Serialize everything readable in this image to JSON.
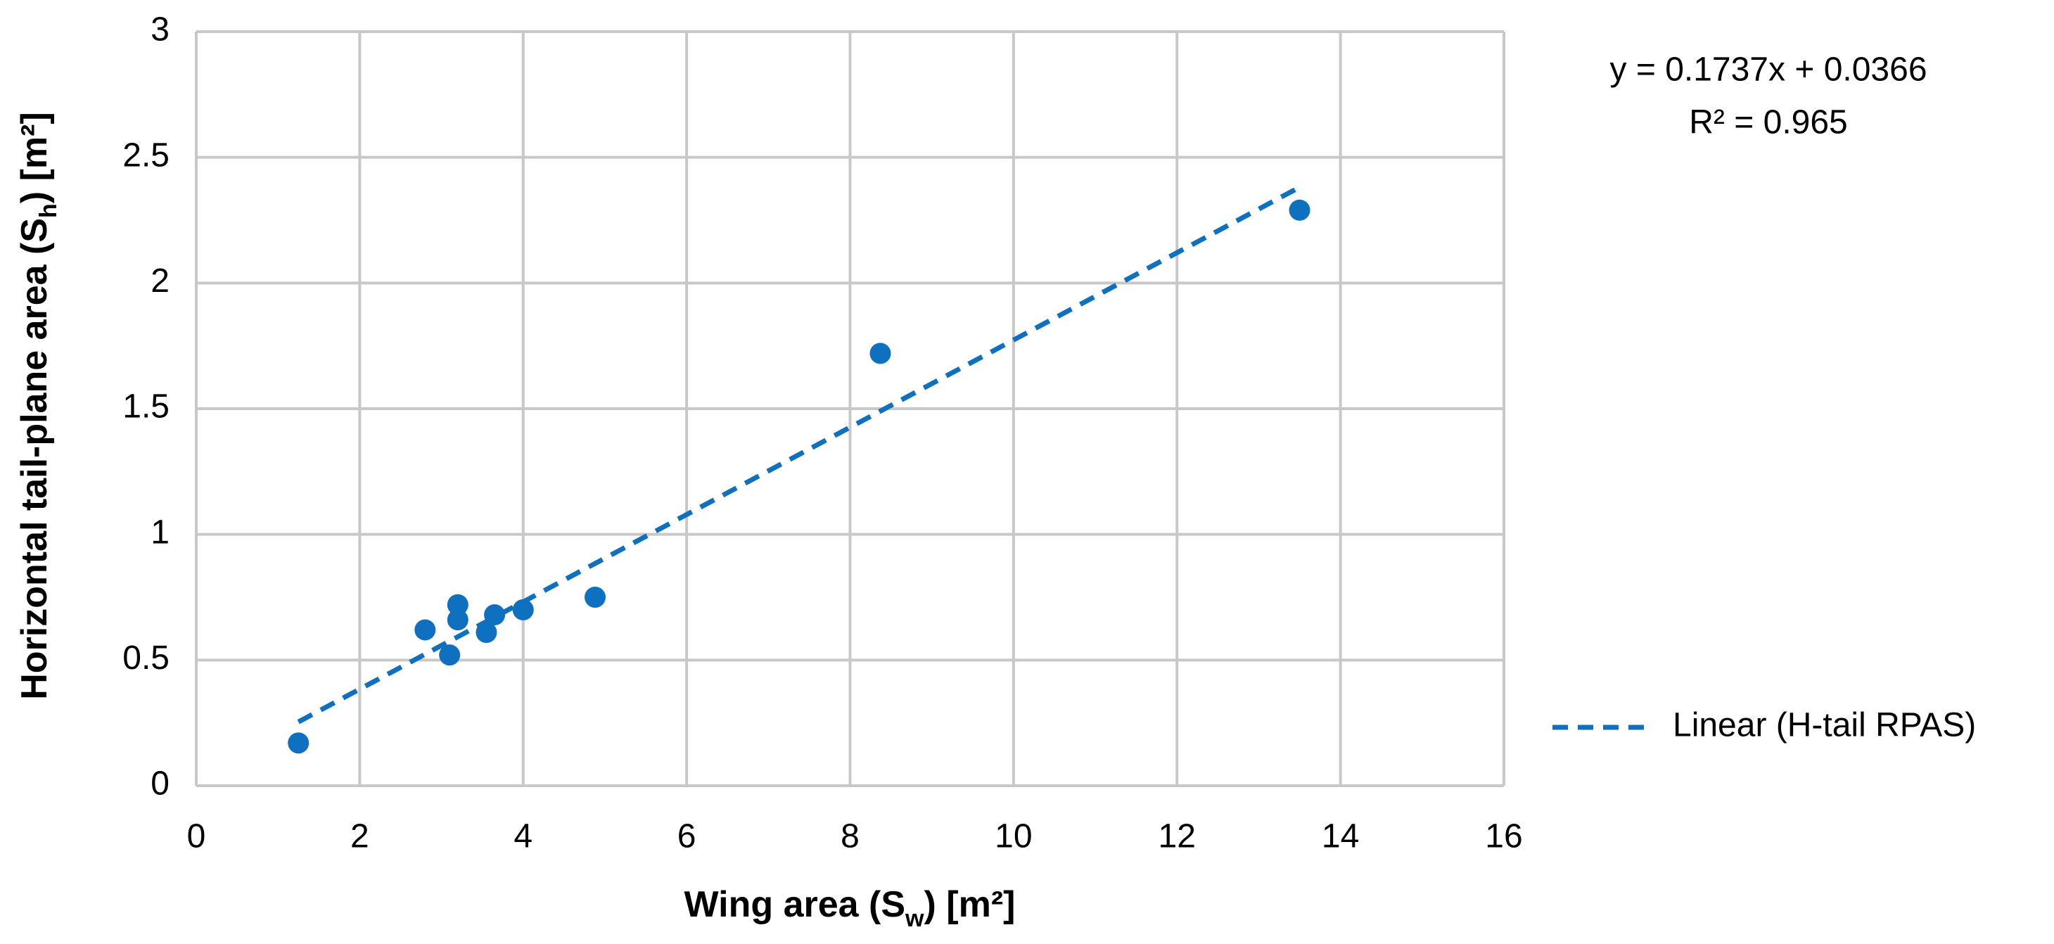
{
  "chart_data": {
    "type": "scatter",
    "x_label": [
      "Wing area (S",
      "w",
      ") [m²]"
    ],
    "y_label": [
      "Horizontal tail-plane area (S",
      "h",
      ") [m²]"
    ],
    "annotations": [
      "y = 0.1737x + 0.0366",
      "R² = 0.965"
    ],
    "xlim": [
      0,
      16
    ],
    "xticks": [
      0,
      2,
      4,
      6,
      8,
      10,
      12,
      14,
      16
    ],
    "ylim": [
      0,
      3
    ],
    "yticks": [
      0,
      0.5,
      1,
      1.5,
      2,
      2.5,
      3
    ],
    "grid": true,
    "legend": "right",
    "series": [
      {
        "color": "#0f70c0",
        "x": [
          1.25,
          2.8,
          3.1,
          3.2,
          3.2,
          3.55,
          3.65,
          4.0,
          4.88,
          8.37,
          13.5
        ],
        "values": [
          0.17,
          0.62,
          0.52,
          0.72,
          0.66,
          0.61,
          0.68,
          0.7,
          0.75,
          1.72,
          2.29
        ]
      },
      {
        "name": "Linear (H-tail RPAS)",
        "color": "#0f70c0",
        "line": "dashed",
        "x": [
          1.25,
          13.5
        ],
        "values": [
          0.254,
          2.381
        ]
      }
    ]
  }
}
